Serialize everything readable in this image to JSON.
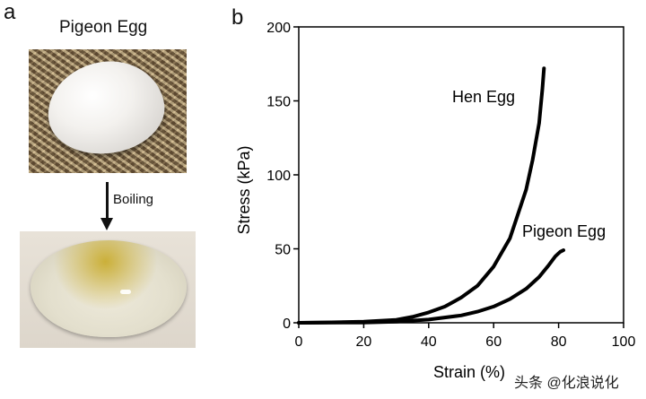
{
  "panel_a": {
    "letter": "a",
    "title": "Pigeon Egg",
    "step_label": "Boiling"
  },
  "panel_b": {
    "letter": "b"
  },
  "watermark": "头条 @化浪说化",
  "chart_data": {
    "type": "line",
    "title": "",
    "xlabel": "Strain (%)",
    "ylabel": "Stress (kPa)",
    "xlim": [
      0,
      100
    ],
    "ylim": [
      0,
      200
    ],
    "xticks": [
      0,
      20,
      40,
      60,
      80,
      100
    ],
    "yticks": [
      0,
      50,
      100,
      150,
      200
    ],
    "grid": false,
    "legend": "none",
    "series": [
      {
        "name": "Hen Egg",
        "color": "#000000",
        "x": [
          0,
          10,
          20,
          30,
          35,
          40,
          45,
          50,
          55,
          60,
          65,
          70,
          72,
          74,
          75,
          75.5
        ],
        "y": [
          0,
          0.3,
          0.8,
          2,
          4,
          7,
          11,
          17,
          25,
          38,
          57,
          90,
          110,
          135,
          158,
          172
        ]
      },
      {
        "name": "Pigeon Egg",
        "color": "#000000",
        "x": [
          0,
          20,
          30,
          40,
          50,
          55,
          60,
          65,
          70,
          74,
          77,
          79,
          80.5,
          81.5
        ],
        "y": [
          0,
          0.2,
          0.8,
          2.2,
          5,
          7.5,
          11,
          16,
          23,
          31,
          39,
          45,
          48,
          49
        ]
      }
    ],
    "annotations": [
      "Hen Egg",
      "Pigeon Egg"
    ]
  }
}
